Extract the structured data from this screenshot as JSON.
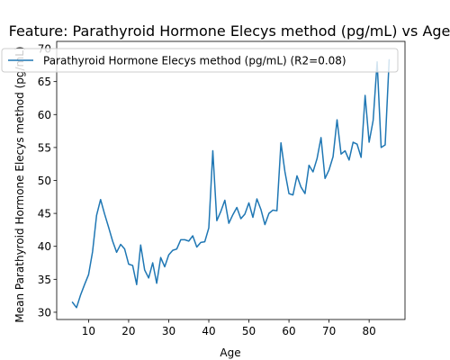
{
  "chart_data": {
    "type": "line",
    "title": "Feature: Parathyroid Hormone Elecys method (pg/mL) vs Age",
    "xlabel": "Age",
    "ylabel": "Mean Parathyroid Hormone Elecys method (pg/mL)",
    "xlim": [
      2.05,
      88.95
    ],
    "ylim": [
      28.9,
      71.1
    ],
    "xticks": [
      10,
      20,
      30,
      40,
      50,
      60,
      70,
      80
    ],
    "yticks": [
      30,
      35,
      40,
      45,
      50,
      55,
      60,
      65,
      70
    ],
    "grid": false,
    "legend_position": "top-right",
    "series": [
      {
        "name": "Parathyroid Hormone Elecys method (pg/mL) (R2=0.08)",
        "color": "#1f77b4",
        "x": [
          6,
          7,
          8,
          9,
          10,
          11,
          12,
          13,
          14,
          15,
          16,
          17,
          18,
          19,
          20,
          21,
          22,
          23,
          24,
          25,
          26,
          27,
          28,
          29,
          30,
          31,
          32,
          33,
          34,
          35,
          36,
          37,
          38,
          39,
          40,
          41,
          42,
          43,
          44,
          45,
          46,
          47,
          48,
          49,
          50,
          51,
          52,
          53,
          54,
          55,
          56,
          57,
          58,
          59,
          60,
          61,
          62,
          63,
          64,
          65,
          66,
          67,
          68,
          69,
          70,
          71,
          72,
          73,
          74,
          75,
          76,
          77,
          78,
          79,
          80,
          81,
          82,
          83,
          84,
          85
        ],
        "values": [
          31.5,
          30.7,
          32.6,
          34.2,
          35.7,
          39.2,
          44.7,
          47.1,
          44.9,
          42.9,
          40.8,
          39.1,
          40.3,
          39.6,
          37.3,
          37.1,
          34.2,
          40.2,
          36.4,
          35.2,
          37.5,
          34.4,
          38.3,
          36.9,
          38.7,
          39.4,
          39.6,
          41.0,
          41.0,
          40.8,
          41.6,
          39.9,
          40.6,
          40.7,
          42.8,
          54.5,
          43.9,
          45.3,
          47.0,
          43.5,
          44.8,
          45.9,
          44.2,
          44.9,
          46.6,
          44.4,
          47.2,
          45.6,
          43.3,
          45.0,
          45.5,
          45.4,
          55.7,
          51.3,
          48.0,
          47.8,
          50.7,
          49.0,
          48.0,
          52.3,
          51.3,
          53.3,
          56.5,
          50.3,
          51.6,
          53.6,
          59.2,
          54.0,
          54.5,
          53.1,
          55.8,
          55.5,
          53.5,
          62.9,
          55.8,
          59.1,
          68.0,
          55.0,
          55.4,
          68.3
        ]
      }
    ]
  }
}
